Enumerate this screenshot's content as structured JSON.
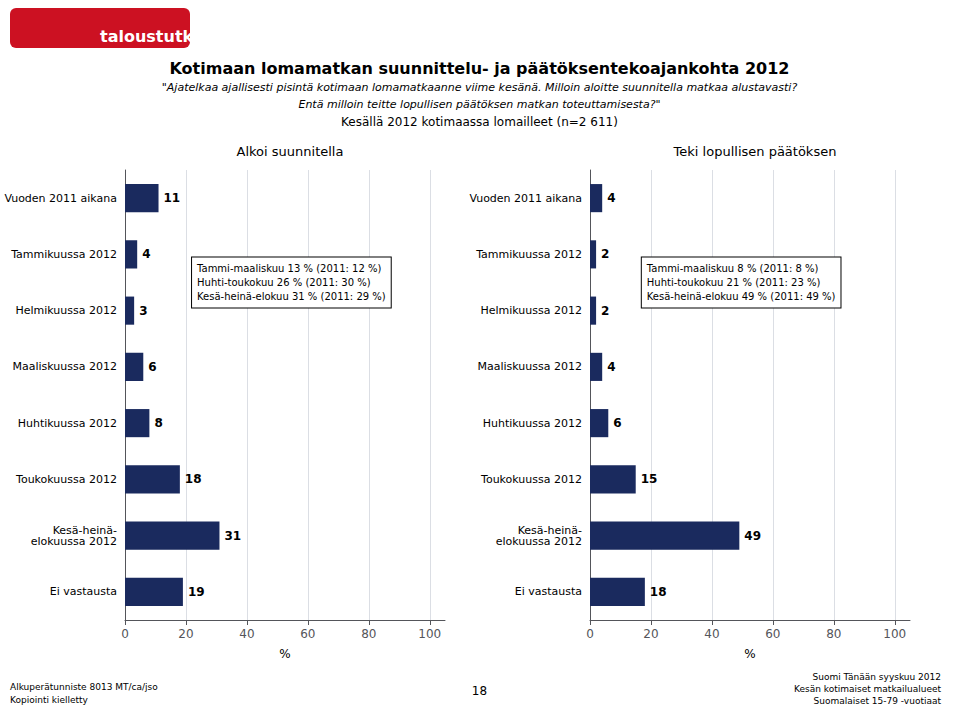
{
  "title": "Kotimaan lomamatkan suunnittelu- ja päätöksentekoajankohta 2012",
  "subtitle": [
    "\"Ajatelkaa ajallisesti pisintä kotimaan lomamatkaanne viime kesänä. Milloin aloitte suunnitella matkaa alustavasti?",
    "Entä milloin teitte lopullisen päätöksen matkan toteuttamisesta?\"",
    "Kesällä 2012 kotimaassa lomailleet (n=2 611)"
  ],
  "annotations": [
    "taloustutkimus oy",
    "Alkuperätunniste 8013 MT/ca/jso",
    "Kopiointi kielletty",
    "18",
    "Suomi Tänään syyskuu 2012",
    "Kesän kotimaiset matkailualueet",
    "Suomalaiset 15-79 -vuotiaat"
  ],
  "chart_data": [
    {
      "type": "bar",
      "orientation": "horizontal",
      "title": "Alkoi suunnitella",
      "categories": [
        "Vuoden 2011 aikana",
        "Tammikuussa 2012",
        "Helmikuussa 2012",
        "Maaliskuussa 2012",
        "Huhtikuussa 2012",
        "Toukokuussa 2012",
        "Kesä-heinä-\nelokuussa 2012",
        "Ei vastausta"
      ],
      "values": [
        11,
        4,
        3,
        6,
        8,
        18,
        31,
        19
      ],
      "color": "#1a2a5e",
      "xlabel": "%",
      "xlim": [
        0,
        105
      ],
      "xticks": [
        0,
        20,
        40,
        60,
        80,
        100
      ],
      "grid": true,
      "data_labels": true,
      "annotations": [
        "Tammi-maaliskuu 13 % (2011: 12 %)\nHuhti-toukokuu 26 % (2011: 30 %)\nKesä-heinä-elokuu 31 % (2011: 29 %)"
      ]
    },
    {
      "type": "bar",
      "orientation": "horizontal",
      "title": "Teki lopullisen päätöksen",
      "categories": [
        "Vuoden 2011 aikana",
        "Tammikuussa 2012",
        "Helmikuussa 2012",
        "Maaliskuussa 2012",
        "Huhtikuussa 2012",
        "Toukokuussa 2012",
        "Kesä-heinä-\nelokuussa 2012",
        "Ei vastausta"
      ],
      "values": [
        4,
        2,
        2,
        4,
        6,
        15,
        49,
        18
      ],
      "color": "#1a2a5e",
      "xlabel": "%",
      "xlim": [
        0,
        105
      ],
      "xticks": [
        0,
        20,
        40,
        60,
        80,
        100
      ],
      "grid": true,
      "data_labels": true,
      "annotations": [
        "Tammi-maaliskuu 8 % (2011: 8 %)\nHuhti-toukokuu 21 % (2011: 23 %)\nKesä-heinä-elokuu 49 % (2011: 49 %)"
      ]
    }
  ]
}
